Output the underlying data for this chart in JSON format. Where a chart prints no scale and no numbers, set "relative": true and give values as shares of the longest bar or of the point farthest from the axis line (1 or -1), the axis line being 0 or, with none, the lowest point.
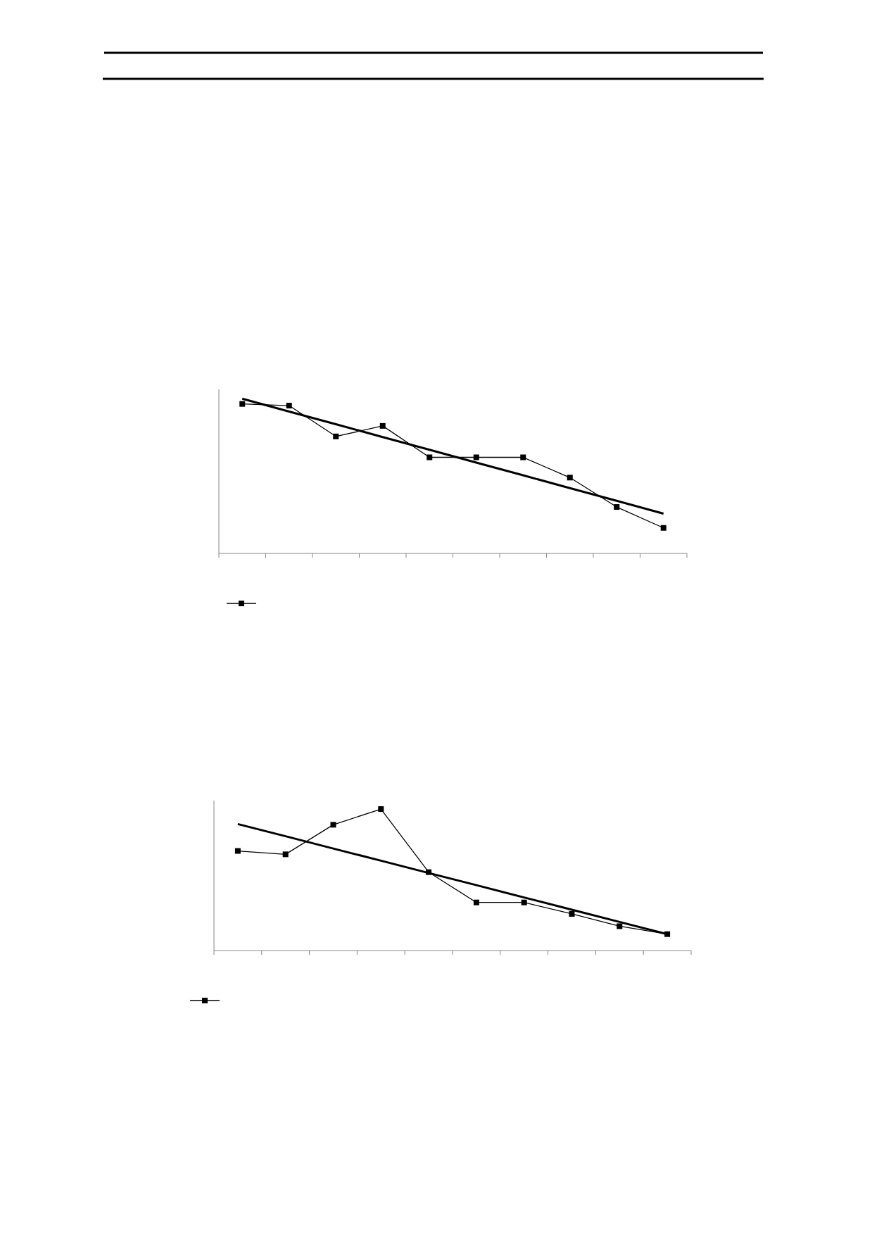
{
  "chart_data": [
    {
      "type": "line",
      "relative": true,
      "categories": [
        null,
        null,
        null,
        null,
        null,
        null,
        null,
        null,
        null,
        null
      ],
      "grid": false,
      "series": [
        {
          "color": "#000000",
          "marker": "square",
          "values": [
            0.966,
            0.955,
            0.756,
            0.824,
            0.621,
            0.621,
            0.621,
            0.49,
            0.3,
            0.165
          ]
        },
        {
          "color": "#000000",
          "marker": "none",
          "values": [
            1,
            0.917,
            0.835,
            0.752,
            0.67,
            0.587,
            0.505,
            0.422,
            0.34,
            0.257
          ]
        }
      ]
    },
    {
      "type": "line",
      "relative": true,
      "categories": [
        null,
        null,
        null,
        null,
        null,
        null,
        null,
        null,
        null,
        null
      ],
      "grid": false,
      "series": [
        {
          "color": "#000000",
          "marker": "square",
          "values": [
            0.704,
            0.68,
            0.889,
            1,
            0.554,
            0.34,
            0.34,
            0.259,
            0.172,
            0.116
          ]
        },
        {
          "color": "#000000",
          "marker": "none",
          "values": [
            0.894,
            0.808,
            0.721,
            0.635,
            0.548,
            0.462,
            0.375,
            0.289,
            0.202,
            0.116
          ]
        }
      ]
    }
  ]
}
